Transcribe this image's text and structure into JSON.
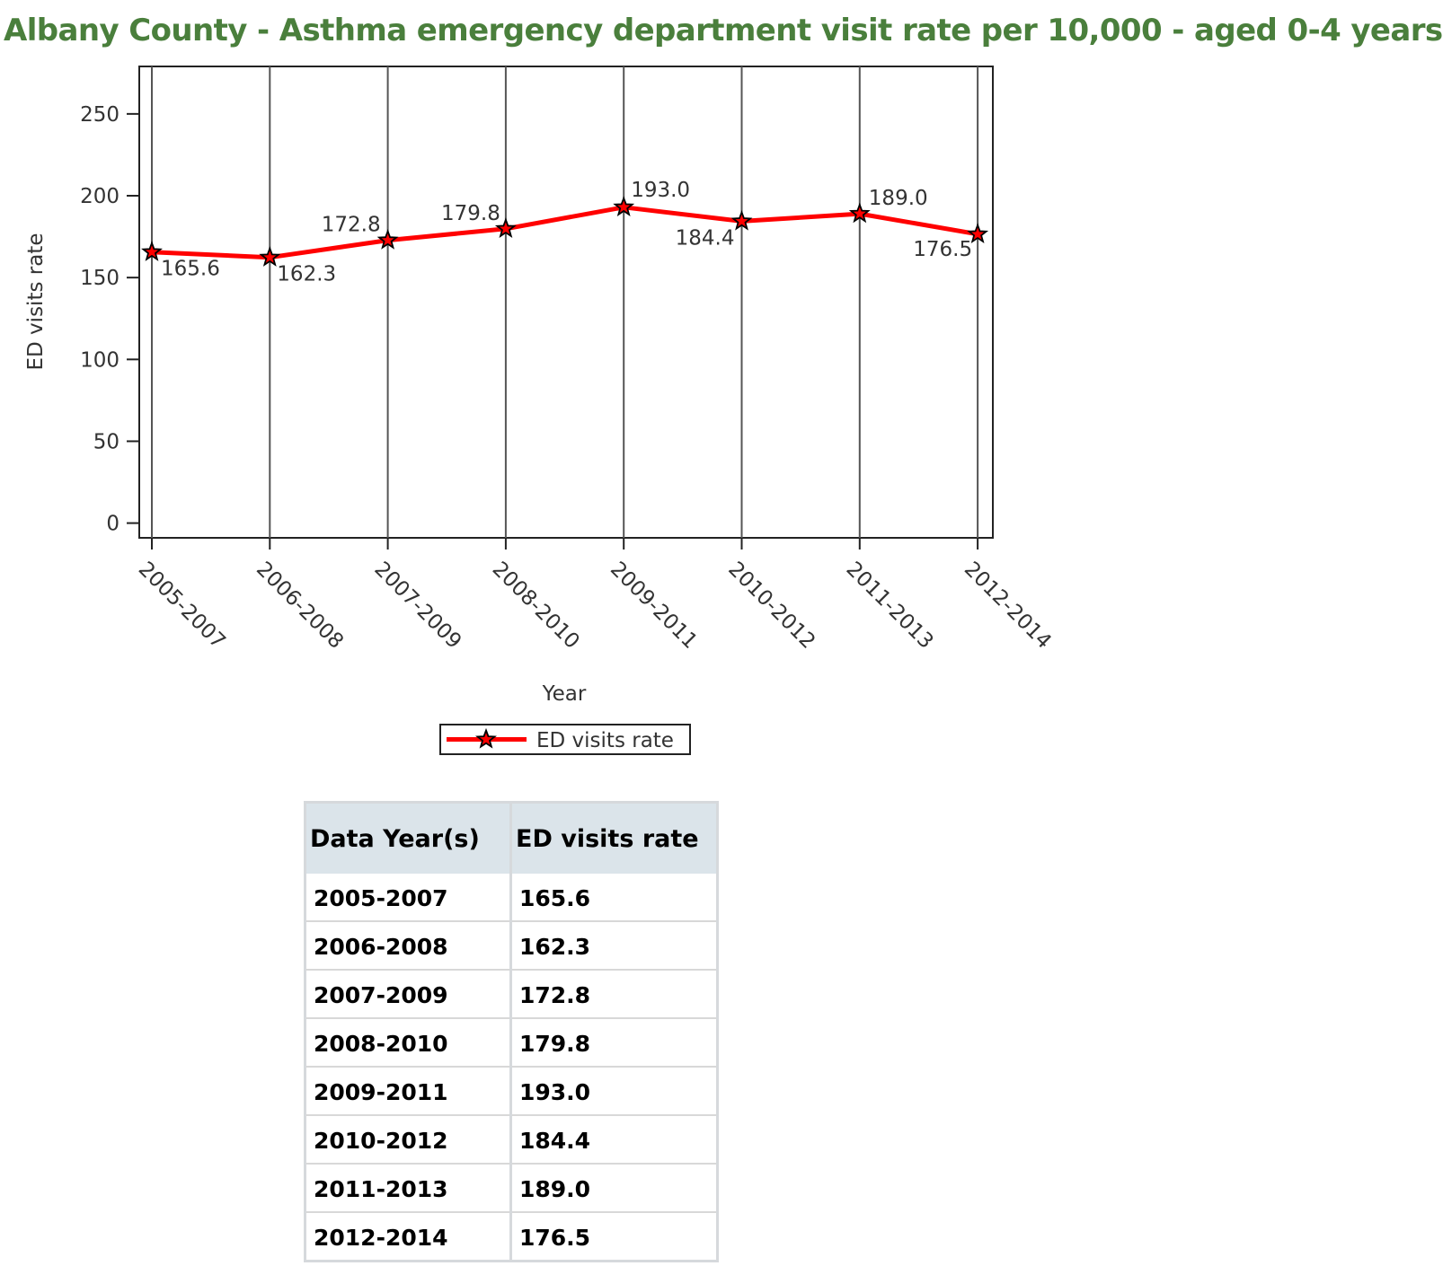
{
  "page": {
    "title": "Albany County - Asthma emergency department visit rate per 10,000 - aged 0-4 years"
  },
  "chart_data": {
    "type": "line",
    "categories": [
      "2005-2007",
      "2006-2008",
      "2007-2009",
      "2008-2010",
      "2009-2011",
      "2010-2012",
      "2011-2013",
      "2012-2014"
    ],
    "series": [
      {
        "name": "ED visits rate",
        "values": [
          165.6,
          162.3,
          172.8,
          179.8,
          193.0,
          184.4,
          189.0,
          176.5
        ],
        "data_labels": [
          "165.6",
          "162.3",
          "172.8",
          "179.8",
          "193.0",
          "184.4",
          "189.0",
          "176.5"
        ],
        "color": "#ff0000",
        "marker": "star"
      }
    ],
    "xlabel": "Year",
    "ylabel": "ED visits rate",
    "ylim": [
      -9,
      279
    ],
    "yticks": [
      0,
      50,
      100,
      150,
      200,
      250
    ],
    "vertical_grid": true,
    "horizontal_grid": false,
    "legend_position": "bottom-center"
  },
  "table": {
    "headers": [
      "Data Year(s)",
      "ED visits rate"
    ],
    "rows": [
      [
        "2005-2007",
        "165.6"
      ],
      [
        "2006-2008",
        "162.3"
      ],
      [
        "2007-2009",
        "172.8"
      ],
      [
        "2008-2010",
        "179.8"
      ],
      [
        "2009-2011",
        "193.0"
      ],
      [
        "2010-2012",
        "184.4"
      ],
      [
        "2011-2013",
        "189.0"
      ],
      [
        "2012-2014",
        "176.5"
      ]
    ]
  }
}
